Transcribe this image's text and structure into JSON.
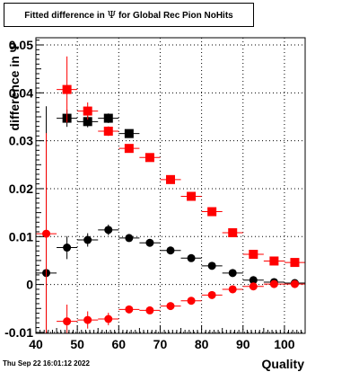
{
  "title": {
    "prefix": "Fitted difference in",
    "symbol": "Ψ",
    "suffix": "for Global Rec Pion NoHits"
  },
  "footer": "Thu Sep 22 16:01:12 2022",
  "chart_data": {
    "type": "scatter",
    "xlabel": "Quality",
    "ylabel": "difference in Ψ",
    "xlim": [
      40,
      105
    ],
    "ylim": [
      -0.0102,
      0.0515
    ],
    "grid": true,
    "x_ticks": [
      40,
      50,
      60,
      70,
      80,
      90,
      100
    ],
    "x_tick_labels": [
      "40",
      "50",
      "60",
      "70",
      "80",
      "90",
      "100"
    ],
    "y_ticks": [
      -0.01,
      0,
      0.01,
      0.02,
      0.03,
      0.04,
      0.05
    ],
    "y_tick_labels": [
      "-0.01",
      "0",
      "0.01",
      "0.02",
      "0.03",
      "0.04",
      "0.05"
    ],
    "colors": {
      "black": "#000000",
      "red": "#ff0000"
    },
    "series": [
      {
        "marker": "square",
        "color": "#000000",
        "x": [
          47.5,
          52.5,
          57.5,
          62.5
        ],
        "y": [
          0.0347,
          0.034,
          0.0347,
          0.0315
        ],
        "xerr": [
          2.5,
          2.5,
          2.5,
          2.5
        ],
        "yerr": [
          0.0018,
          0.0012,
          0.001,
          0.0008
        ]
      },
      {
        "marker": "square",
        "color": "#ff0000",
        "x": [
          47.5,
          52.5,
          57.5,
          62.5,
          67.5,
          72.5,
          77.5,
          82.5,
          87.5,
          92.5,
          97.5,
          102.5
        ],
        "y": [
          0.0407,
          0.0362,
          0.032,
          0.0284,
          0.0265,
          0.0219,
          0.0184,
          0.0152,
          0.0108,
          0.0063,
          0.0049,
          0.0046
        ],
        "xerr": [
          2.5,
          2.5,
          2.5,
          2.5,
          2.5,
          2.5,
          2.5,
          2.5,
          2.5,
          2.5,
          2.5,
          2.5
        ],
        "yerr": [
          0.0069,
          0.0018,
          0.001,
          0.0006,
          0.0005,
          0.0004,
          0.0004,
          0.0003,
          0.0003,
          0.0003,
          0.0003,
          0.0003
        ]
      },
      {
        "marker": "circle",
        "color": "#000000",
        "x": [
          42.5,
          47.5,
          52.5,
          57.5,
          62.5,
          67.5,
          72.5,
          77.5,
          82.5,
          87.5,
          92.5,
          97.5,
          102.5
        ],
        "y": [
          0.0024,
          0.0077,
          0.0093,
          0.0114,
          0.0097,
          0.0087,
          0.0071,
          0.0055,
          0.0039,
          0.0024,
          0.0009,
          0.0005,
          0.0003
        ],
        "xerr": [
          2.5,
          2.5,
          2.5,
          2.5,
          2.5,
          2.5,
          2.5,
          2.5,
          2.5,
          2.5,
          2.5,
          2.5,
          2.5
        ],
        "yerr": [
          0.0348,
          0.0024,
          0.0014,
          0.0011,
          0.0006,
          0.0005,
          0.0004,
          0.0004,
          0.0003,
          0.0003,
          0.0003,
          0.0003,
          0.0003
        ]
      },
      {
        "marker": "circle",
        "color": "#ff0000",
        "x": [
          42.5,
          47.5,
          52.5,
          57.5,
          62.5,
          67.5,
          72.5,
          77.5,
          82.5,
          87.5,
          92.5,
          97.5,
          102.5
        ],
        "y": [
          0.0106,
          -0.0077,
          -0.0074,
          -0.0072,
          -0.0052,
          -0.0054,
          -0.0045,
          -0.0034,
          -0.0022,
          -0.001,
          -0.0004,
          0.0001,
          0.0001
        ],
        "xerr": [
          2.5,
          2.5,
          2.5,
          2.5,
          2.5,
          2.5,
          2.5,
          2.5,
          2.5,
          2.5,
          2.5,
          2.5,
          2.5
        ],
        "yerr": [
          0.021,
          0.0035,
          0.0018,
          0.0013,
          0.0007,
          0.0005,
          0.0004,
          0.0004,
          0.0003,
          0.0003,
          0.0003,
          0.0003,
          0.0003
        ]
      }
    ]
  }
}
